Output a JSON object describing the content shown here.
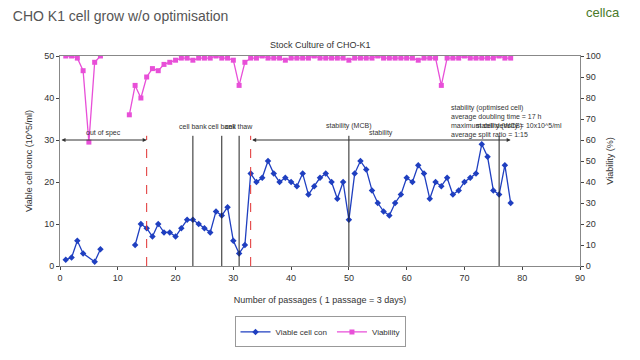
{
  "chart_data": {
    "type": "scatter",
    "title": "CHO K1 cell grow w/o optimisation",
    "subtitle": "Stock Culture of CHO-K1",
    "brand": "cellca",
    "x_label": "Number of passages ( 1 passage = 3 days)",
    "y_label": "Viable cell conc (10^5/ml)",
    "y2_label": "Viability (%)",
    "xlim": [
      0,
      90
    ],
    "xticks": [
      0,
      10,
      20,
      30,
      40,
      50,
      60,
      70,
      80,
      90
    ],
    "ylim": [
      0,
      50
    ],
    "yticks": [
      0,
      10,
      20,
      30,
      40,
      50
    ],
    "y2lim": [
      0,
      100
    ],
    "y2ticks": [
      0,
      10,
      20,
      30,
      40,
      50,
      60,
      70,
      80,
      90,
      100
    ],
    "legend": "bottom",
    "grid": false,
    "series": [
      {
        "name": "Viable cell con",
        "color": "#1f3fc0",
        "marker": "diamond",
        "line_style": "solid",
        "x": [
          1,
          2,
          3,
          4,
          6,
          7,
          8,
          13,
          14,
          15,
          16,
          17,
          18,
          19,
          20,
          21,
          22,
          23,
          24,
          25,
          26,
          27,
          28,
          29,
          30,
          31,
          32,
          33,
          34,
          35,
          36,
          37,
          38,
          39,
          40,
          41,
          42,
          43,
          44,
          45,
          46,
          47,
          48,
          49,
          50,
          51,
          52,
          53,
          54,
          55,
          56,
          57,
          58,
          59,
          60,
          61,
          62,
          63,
          64,
          65,
          66,
          67,
          68,
          69,
          70,
          71,
          72,
          73,
          74,
          75,
          76,
          77,
          78
        ],
        "values": [
          1.5,
          2,
          6,
          3,
          1,
          4,
          null,
          5,
          10,
          9,
          7,
          10,
          8,
          8,
          7,
          9,
          11,
          11,
          10,
          9,
          8,
          13,
          12,
          14,
          6,
          3,
          5,
          22,
          20,
          21,
          25,
          22,
          20,
          21,
          20,
          19,
          22,
          17,
          19,
          21,
          22,
          20,
          16,
          20,
          11,
          22,
          25,
          23,
          18,
          15,
          13,
          12,
          15,
          17,
          21,
          20,
          24,
          22,
          16,
          20,
          19,
          21,
          17,
          18,
          20,
          21,
          22,
          29,
          26,
          18,
          17,
          24,
          15
        ]
      },
      {
        "name": "Viability",
        "color": "#e84fd8",
        "marker": "square",
        "line_style": "solid",
        "axis": "y2",
        "x": [
          1,
          2,
          3,
          4,
          5,
          6,
          7,
          8,
          12,
          13,
          14,
          15,
          16,
          17,
          18,
          19,
          20,
          21,
          22,
          23,
          24,
          25,
          26,
          27,
          28,
          29,
          30,
          31,
          32,
          33,
          34,
          35,
          36,
          37,
          38,
          39,
          40,
          41,
          42,
          43,
          44,
          45,
          46,
          47,
          48,
          49,
          50,
          51,
          52,
          53,
          54,
          55,
          56,
          57,
          58,
          59,
          60,
          61,
          62,
          63,
          64,
          65,
          66,
          67,
          68,
          69,
          70,
          71,
          72,
          73,
          74,
          75,
          76,
          77,
          78
        ],
        "values": [
          100,
          100,
          99,
          93,
          59,
          97,
          100,
          null,
          72,
          86,
          80,
          90,
          94,
          93,
          96,
          97,
          98,
          99,
          99,
          98,
          99,
          99,
          99,
          100,
          99,
          99,
          98,
          86,
          97,
          99,
          99,
          100,
          99,
          99,
          99,
          98,
          99,
          99,
          99,
          99,
          100,
          99,
          99,
          99,
          99,
          99,
          98,
          99,
          99,
          99,
          99,
          100,
          99,
          99,
          99,
          99,
          99,
          99,
          98,
          99,
          99,
          99,
          86,
          99,
          99,
          99,
          100,
          99,
          99,
          99,
          99,
          99,
          100,
          99,
          99
        ]
      }
    ],
    "reference_lines": [
      {
        "x": 15,
        "color": "#e03030",
        "line_style": "dashed"
      },
      {
        "x": 33,
        "color": "#e03030",
        "line_style": "dashed"
      },
      {
        "x": 23,
        "color": "#222222",
        "line_style": "solid",
        "label": "cell bank"
      },
      {
        "x": 28,
        "color": "#222222",
        "line_style": "solid",
        "label": "cell bank"
      },
      {
        "x": 31,
        "color": "#222222",
        "line_style": "solid",
        "label": "cell thaw"
      },
      {
        "x": 50,
        "color": "#222222",
        "line_style": "solid",
        "label": "stability (MCB)"
      },
      {
        "x": 76,
        "color": "#222222",
        "line_style": "solid",
        "label": "stability (WCB)"
      }
    ],
    "spans": [
      {
        "text": "out of spec",
        "x0": 0,
        "x1": 15,
        "y": 30
      },
      {
        "text": "stability",
        "x0": 33,
        "x1": 78,
        "y": 30
      }
    ],
    "note": [
      "stability (optimised cell)",
      "average doubling time = 17 h",
      "maximum cell density = 10x10^5/ml",
      "average split ratio = 1:15"
    ]
  }
}
